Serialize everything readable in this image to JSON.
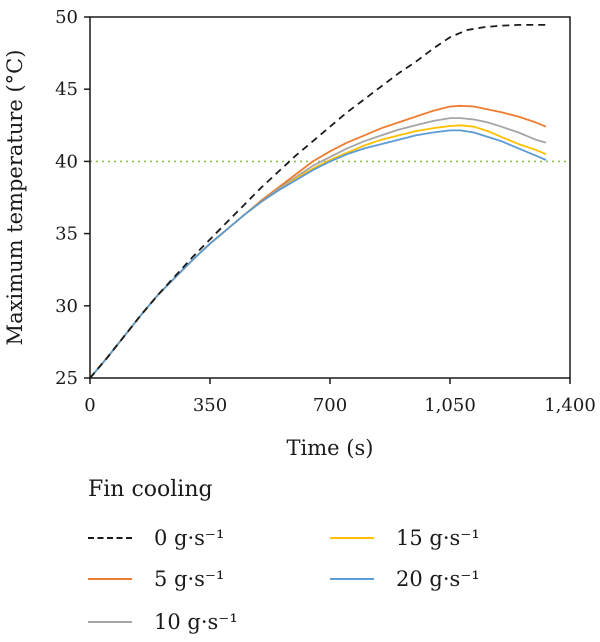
{
  "chart_data": {
    "type": "line",
    "xlabel": "Time (s)",
    "ylabel": "Maximum temperature (°C)",
    "xlim": [
      0,
      1400
    ],
    "ylim": [
      25,
      50
    ],
    "xticks": [
      0,
      350,
      700,
      1050,
      1400
    ],
    "xtick_labels": [
      "0",
      "350",
      "700",
      "1,050",
      "1,400"
    ],
    "yticks": [
      25,
      30,
      35,
      40,
      45,
      50
    ],
    "ytick_labels": [
      "25",
      "30",
      "35",
      "40",
      "45",
      "50"
    ],
    "reference_line": {
      "y": 40,
      "color": "#8bc34a",
      "style": "dotted"
    },
    "legend_title": "Fin cooling",
    "series": [
      {
        "name": "0 g·s⁻¹",
        "color": "#1a1a1a",
        "dashed": true,
        "x": [
          0,
          50,
          100,
          150,
          200,
          250,
          300,
          350,
          400,
          450,
          500,
          550,
          600,
          650,
          700,
          750,
          800,
          850,
          900,
          950,
          1000,
          1050,
          1100,
          1150,
          1200,
          1250,
          1300,
          1330
        ],
        "y": [
          25.0,
          26.4,
          27.9,
          29.4,
          30.8,
          32.1,
          33.4,
          34.6,
          35.8,
          37.0,
          38.2,
          39.3,
          40.4,
          41.4,
          42.4,
          43.4,
          44.3,
          45.2,
          46.1,
          46.9,
          47.8,
          48.6,
          49.1,
          49.3,
          49.4,
          49.45,
          49.45,
          49.45
        ]
      },
      {
        "name": "5 g·s⁻¹",
        "color": "#ed7d31",
        "dashed": false,
        "x": [
          0,
          50,
          100,
          150,
          200,
          250,
          300,
          350,
          400,
          450,
          500,
          550,
          600,
          650,
          700,
          750,
          800,
          850,
          900,
          950,
          1000,
          1050,
          1080,
          1120,
          1160,
          1200,
          1250,
          1300,
          1330
        ],
        "y": [
          25.0,
          26.4,
          27.9,
          29.4,
          30.8,
          32.0,
          33.2,
          34.3,
          35.3,
          36.3,
          37.3,
          38.2,
          39.1,
          40.0,
          40.7,
          41.3,
          41.8,
          42.3,
          42.7,
          43.1,
          43.5,
          43.8,
          43.85,
          43.8,
          43.6,
          43.4,
          43.1,
          42.7,
          42.4
        ]
      },
      {
        "name": "10 g·s⁻¹",
        "color": "#a5a5a5",
        "dashed": false,
        "x": [
          0,
          50,
          100,
          150,
          200,
          250,
          300,
          350,
          400,
          450,
          500,
          550,
          600,
          650,
          700,
          750,
          800,
          850,
          900,
          950,
          1000,
          1050,
          1080,
          1120,
          1160,
          1200,
          1250,
          1300,
          1330
        ],
        "y": [
          25.0,
          26.4,
          27.9,
          29.4,
          30.8,
          32.0,
          33.2,
          34.3,
          35.3,
          36.3,
          37.2,
          38.1,
          38.9,
          39.7,
          40.3,
          40.9,
          41.4,
          41.8,
          42.2,
          42.5,
          42.8,
          43.0,
          43.0,
          42.9,
          42.7,
          42.4,
          42.0,
          41.5,
          41.3
        ]
      },
      {
        "name": "15 g·s⁻¹",
        "color": "#ffc000",
        "dashed": false,
        "x": [
          0,
          50,
          100,
          150,
          200,
          250,
          300,
          350,
          400,
          450,
          500,
          550,
          600,
          650,
          700,
          750,
          800,
          850,
          900,
          950,
          1000,
          1050,
          1080,
          1120,
          1160,
          1200,
          1250,
          1300,
          1330
        ],
        "y": [
          25.0,
          26.4,
          27.9,
          29.4,
          30.8,
          32.0,
          33.2,
          34.3,
          35.3,
          36.3,
          37.2,
          38.0,
          38.8,
          39.5,
          40.1,
          40.6,
          41.1,
          41.5,
          41.8,
          42.1,
          42.3,
          42.45,
          42.5,
          42.4,
          42.1,
          41.7,
          41.2,
          40.8,
          40.5
        ]
      },
      {
        "name": "20 g·s⁻¹",
        "color": "#5b9bd5",
        "dashed": false,
        "x": [
          0,
          50,
          100,
          150,
          200,
          250,
          300,
          350,
          400,
          450,
          500,
          550,
          600,
          650,
          700,
          750,
          800,
          850,
          900,
          950,
          1000,
          1050,
          1080,
          1120,
          1160,
          1200,
          1250,
          1300,
          1330
        ],
        "y": [
          25.0,
          26.4,
          27.9,
          29.4,
          30.8,
          32.0,
          33.2,
          34.3,
          35.3,
          36.3,
          37.2,
          38.0,
          38.7,
          39.4,
          40.0,
          40.5,
          40.9,
          41.2,
          41.5,
          41.8,
          42.0,
          42.15,
          42.15,
          42.0,
          41.7,
          41.4,
          40.9,
          40.4,
          40.1
        ]
      }
    ]
  }
}
